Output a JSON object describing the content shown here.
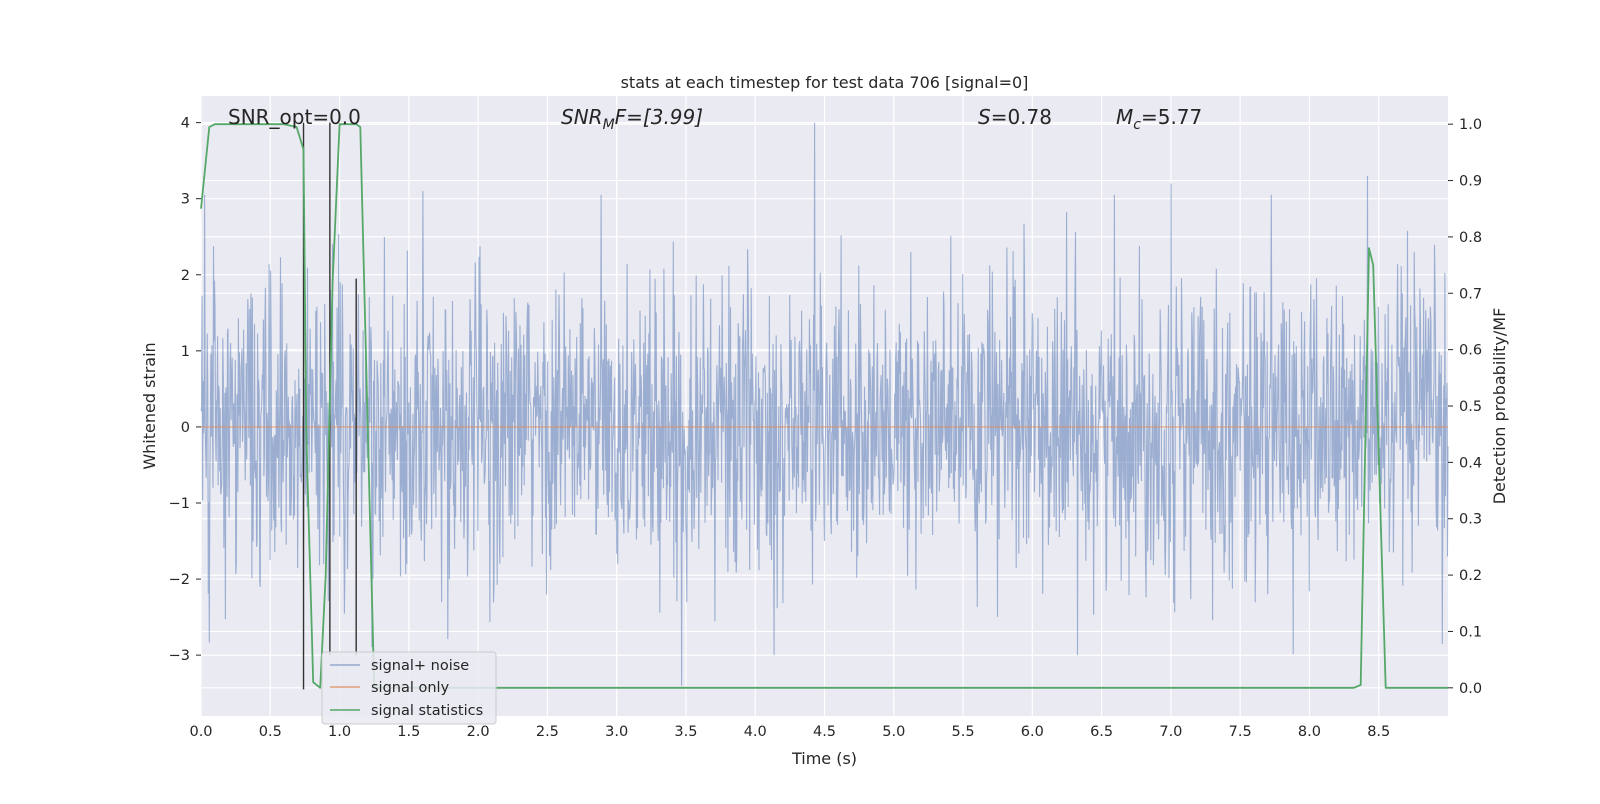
{
  "chart_data": {
    "type": "line",
    "title": "stats at each timestep for test data 706 [signal=0]",
    "xlabel": "Time (s)",
    "ylabel": "Whitened strain",
    "y2label": "Detection probability/MF",
    "xlim": [
      0.0,
      9.0
    ],
    "ylim": [
      -3.8,
      4.35
    ],
    "y2lim": [
      -0.05,
      1.05
    ],
    "x_ticks": [
      "0.0",
      "0.5",
      "1.0",
      "1.5",
      "2.0",
      "2.5",
      "3.0",
      "3.5",
      "4.0",
      "4.5",
      "5.0",
      "5.5",
      "6.0",
      "6.5",
      "7.0",
      "7.5",
      "8.0",
      "8.5"
    ],
    "y_ticks": [
      "4",
      "3",
      "2",
      "1",
      "0",
      "−1",
      "−2",
      "−3"
    ],
    "y2_ticks": [
      "1.0",
      "0.9",
      "0.8",
      "0.7",
      "0.6",
      "0.5",
      "0.4",
      "0.3",
      "0.2",
      "0.1",
      "0.0"
    ],
    "grid": true,
    "legend_placement": "lower-left",
    "annotations": {
      "snr_opt": "SNR_opt=0.0",
      "snr_mf_base": "SNR",
      "snr_mf_sub": "M",
      "snr_mf_rest": "F=[3.99]",
      "s_var": "S",
      "s_val": "=0.78",
      "mc_base": "M",
      "mc_sub": "c",
      "mc_val": "=5.77"
    },
    "series": [
      {
        "name": "signal+ noise",
        "color": "#4c72b0",
        "axis": "left",
        "description_level": "dense whitened noise, amplitude roughly within ±2 with peaks near 4",
        "peaks": [
          {
            "x": 0.74,
            "y": -1.6
          },
          {
            "x": 0.95,
            "y": 2.4
          },
          {
            "x": 1.6,
            "y": 3.1
          },
          {
            "x": 3.47,
            "y": -3.4
          },
          {
            "x": 4.43,
            "y": 4.0
          },
          {
            "x": 7.0,
            "y": 3.2
          },
          {
            "x": 8.42,
            "y": 3.3
          }
        ]
      },
      {
        "name": "signal only",
        "color": "#dd8452",
        "axis": "left",
        "x": [
          0.0,
          9.0
        ],
        "y": [
          0.0,
          0.0
        ]
      },
      {
        "name": "signal statistics",
        "color": "#55a868",
        "axis": "right",
        "x": [
          0.0,
          0.06,
          0.1,
          0.2,
          0.3,
          0.4,
          0.5,
          0.6,
          0.69,
          0.74,
          0.76,
          0.81,
          0.86,
          0.9,
          0.95,
          1.0,
          1.06,
          1.12,
          1.15,
          1.25,
          1.5,
          2.0,
          3.0,
          4.0,
          5.0,
          6.0,
          7.0,
          8.0,
          8.32,
          8.37,
          8.43,
          8.46,
          8.49,
          8.55,
          8.7,
          9.0
        ],
        "y": [
          0.85,
          0.995,
          1.0,
          1.0,
          1.0,
          1.0,
          1.0,
          1.0,
          0.995,
          0.955,
          0.45,
          0.01,
          0.0,
          0.2,
          0.72,
          1.0,
          1.0,
          1.0,
          0.995,
          0.0,
          0.0,
          0.0,
          0.0,
          0.0,
          0.0,
          0.0,
          0.0,
          0.0,
          0.0,
          0.005,
          0.78,
          0.75,
          0.5,
          0.0,
          0.0,
          0.0
        ]
      }
    ],
    "vertical_lines": [
      {
        "x": 0.74,
        "ymin": -3.45,
        "ymax": 4.0,
        "color": "#333333"
      },
      {
        "x": 0.93,
        "ymin": -3.0,
        "ymax": 4.0,
        "color": "#333333"
      },
      {
        "x": 1.12,
        "ymin": -3.0,
        "ymax": 1.95,
        "color": "#333333"
      }
    ]
  }
}
